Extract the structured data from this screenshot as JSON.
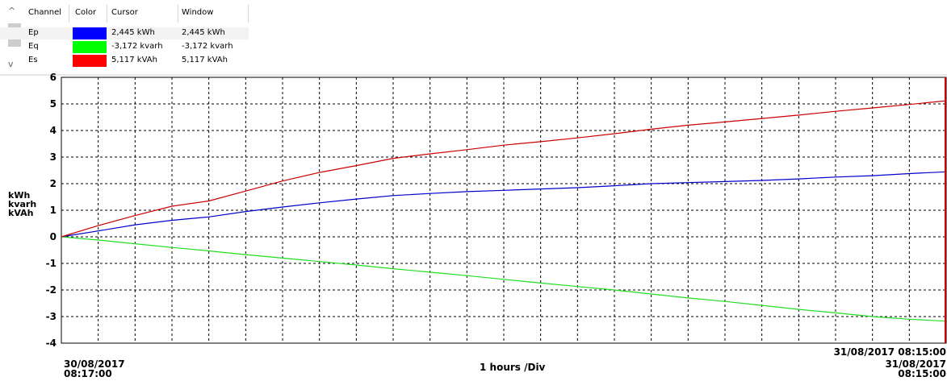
{
  "table": {
    "headers": {
      "channel": "Channel",
      "color": "Color",
      "cursor": "Cursor",
      "window": "Window"
    },
    "rows": [
      {
        "name": "Ep",
        "color": "#0000ff",
        "cursor": "2,445 kWh",
        "window": "2,445 kWh"
      },
      {
        "name": "Eq",
        "color": "#00ff00",
        "cursor": "-3,172 kvarh",
        "window": "-3,172 kvarh"
      },
      {
        "name": "Es",
        "color": "#ff0000",
        "cursor": "5,117 kVAh",
        "window": "5,117 kVAh"
      }
    ]
  },
  "axis": {
    "units": [
      "kWh",
      "kvarh",
      "kVAh"
    ],
    "start_date": "30/08/2017",
    "start_time": "08:17:00",
    "div_label": "1 hours /Div",
    "cursor_label": "31/08/2017 08:15:00",
    "end_date": "31/08/2017",
    "end_time": "08:15:00"
  },
  "chart_data": {
    "type": "line",
    "x": [
      0,
      1,
      2,
      3,
      4,
      5,
      6,
      7,
      8,
      9,
      10,
      11,
      12,
      13,
      14,
      15,
      16,
      17,
      18,
      19,
      20,
      21,
      22,
      23,
      24
    ],
    "ylim": [
      -4,
      6
    ],
    "yticks": [
      6,
      5,
      4,
      3,
      2,
      1,
      0,
      -1,
      -2,
      -3,
      -4
    ],
    "grid": true,
    "series": [
      {
        "name": "Ep",
        "color": "#0000cc",
        "values": [
          0,
          0.22,
          0.45,
          0.62,
          0.75,
          0.95,
          1.12,
          1.28,
          1.42,
          1.55,
          1.63,
          1.7,
          1.75,
          1.8,
          1.85,
          1.92,
          2.0,
          2.04,
          2.08,
          2.12,
          2.18,
          2.25,
          2.3,
          2.38,
          2.445
        ]
      },
      {
        "name": "Eq",
        "color": "#22dd22",
        "values": [
          0,
          -0.12,
          -0.26,
          -0.4,
          -0.53,
          -0.67,
          -0.8,
          -0.93,
          -1.06,
          -1.2,
          -1.33,
          -1.46,
          -1.6,
          -1.74,
          -1.87,
          -2.0,
          -2.15,
          -2.3,
          -2.43,
          -2.58,
          -2.73,
          -2.86,
          -3.0,
          -3.1,
          -3.172
        ]
      },
      {
        "name": "Es",
        "color": "#cc0000",
        "values": [
          0,
          0.42,
          0.8,
          1.15,
          1.35,
          1.72,
          2.1,
          2.42,
          2.68,
          2.95,
          3.12,
          3.28,
          3.45,
          3.58,
          3.72,
          3.88,
          4.05,
          4.2,
          4.32,
          4.45,
          4.58,
          4.72,
          4.85,
          4.98,
          5.117
        ]
      }
    ]
  }
}
